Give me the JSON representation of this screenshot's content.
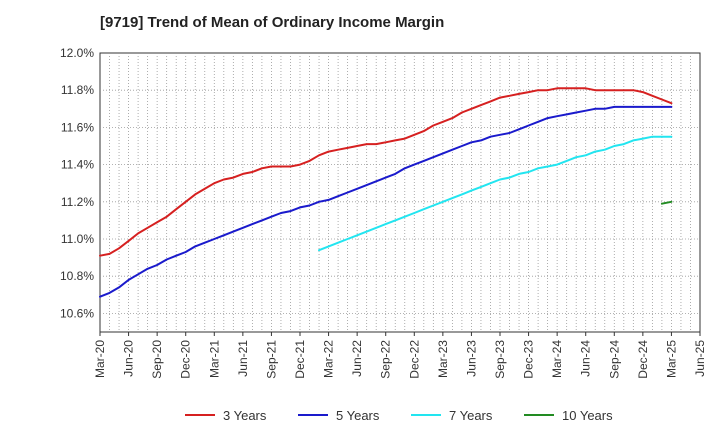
{
  "chart_data": {
    "type": "line",
    "title": "[9719]  Trend of Mean of Ordinary Income Margin",
    "xlabel": "",
    "ylabel": "",
    "ylim": [
      10.5,
      12.0
    ],
    "xlim": [
      "2020-03",
      "2025-06"
    ],
    "grid": true,
    "legend_position": "bottom",
    "y_ticks": [
      "10.6%",
      "10.8%",
      "11.0%",
      "11.2%",
      "11.4%",
      "11.6%",
      "11.8%",
      "12.0%"
    ],
    "x_ticks": [
      "Mar-20",
      "Jun-20",
      "Sep-20",
      "Dec-20",
      "Mar-21",
      "Jun-21",
      "Sep-21",
      "Dec-21",
      "Mar-22",
      "Jun-22",
      "Sep-22",
      "Dec-22",
      "Mar-23",
      "Jun-23",
      "Sep-23",
      "Dec-23",
      "Mar-24",
      "Jun-24",
      "Sep-24",
      "Dec-24",
      "Mar-25",
      "Jun-25"
    ],
    "series": [
      {
        "name": "3 Years",
        "color": "#d62020",
        "points": [
          [
            "2020-03",
            10.91
          ],
          [
            "2020-04",
            10.92
          ],
          [
            "2020-05",
            10.95
          ],
          [
            "2020-06",
            10.99
          ],
          [
            "2020-07",
            11.03
          ],
          [
            "2020-08",
            11.06
          ],
          [
            "2020-09",
            11.09
          ],
          [
            "2020-10",
            11.12
          ],
          [
            "2020-11",
            11.16
          ],
          [
            "2020-12",
            11.2
          ],
          [
            "2021-01",
            11.24
          ],
          [
            "2021-02",
            11.27
          ],
          [
            "2021-03",
            11.3
          ],
          [
            "2021-04",
            11.32
          ],
          [
            "2021-05",
            11.33
          ],
          [
            "2021-06",
            11.35
          ],
          [
            "2021-07",
            11.36
          ],
          [
            "2021-08",
            11.38
          ],
          [
            "2021-09",
            11.39
          ],
          [
            "2021-10",
            11.39
          ],
          [
            "2021-11",
            11.39
          ],
          [
            "2021-12",
            11.4
          ],
          [
            "2022-01",
            11.42
          ],
          [
            "2022-02",
            11.45
          ],
          [
            "2022-03",
            11.47
          ],
          [
            "2022-04",
            11.48
          ],
          [
            "2022-05",
            11.49
          ],
          [
            "2022-06",
            11.5
          ],
          [
            "2022-07",
            11.51
          ],
          [
            "2022-08",
            11.51
          ],
          [
            "2022-09",
            11.52
          ],
          [
            "2022-10",
            11.53
          ],
          [
            "2022-11",
            11.54
          ],
          [
            "2022-12",
            11.56
          ],
          [
            "2023-01",
            11.58
          ],
          [
            "2023-02",
            11.61
          ],
          [
            "2023-03",
            11.63
          ],
          [
            "2023-04",
            11.65
          ],
          [
            "2023-05",
            11.68
          ],
          [
            "2023-06",
            11.7
          ],
          [
            "2023-07",
            11.72
          ],
          [
            "2023-08",
            11.74
          ],
          [
            "2023-09",
            11.76
          ],
          [
            "2023-10",
            11.77
          ],
          [
            "2023-11",
            11.78
          ],
          [
            "2023-12",
            11.79
          ],
          [
            "2024-01",
            11.8
          ],
          [
            "2024-02",
            11.8
          ],
          [
            "2024-03",
            11.81
          ],
          [
            "2024-04",
            11.81
          ],
          [
            "2024-05",
            11.81
          ],
          [
            "2024-06",
            11.81
          ],
          [
            "2024-07",
            11.8
          ],
          [
            "2024-08",
            11.8
          ],
          [
            "2024-09",
            11.8
          ],
          [
            "2024-10",
            11.8
          ],
          [
            "2024-11",
            11.8
          ],
          [
            "2024-12",
            11.79
          ],
          [
            "2025-01",
            11.77
          ],
          [
            "2025-02",
            11.75
          ],
          [
            "2025-03",
            11.73
          ]
        ]
      },
      {
        "name": "5 Years",
        "color": "#1a1acc",
        "points": [
          [
            "2020-03",
            10.69
          ],
          [
            "2020-04",
            10.71
          ],
          [
            "2020-05",
            10.74
          ],
          [
            "2020-06",
            10.78
          ],
          [
            "2020-07",
            10.81
          ],
          [
            "2020-08",
            10.84
          ],
          [
            "2020-09",
            10.86
          ],
          [
            "2020-10",
            10.89
          ],
          [
            "2020-11",
            10.91
          ],
          [
            "2020-12",
            10.93
          ],
          [
            "2021-01",
            10.96
          ],
          [
            "2021-02",
            10.98
          ],
          [
            "2021-03",
            11.0
          ],
          [
            "2021-04",
            11.02
          ],
          [
            "2021-05",
            11.04
          ],
          [
            "2021-06",
            11.06
          ],
          [
            "2021-07",
            11.08
          ],
          [
            "2021-08",
            11.1
          ],
          [
            "2021-09",
            11.12
          ],
          [
            "2021-10",
            11.14
          ],
          [
            "2021-11",
            11.15
          ],
          [
            "2021-12",
            11.17
          ],
          [
            "2022-01",
            11.18
          ],
          [
            "2022-02",
            11.2
          ],
          [
            "2022-03",
            11.21
          ],
          [
            "2022-04",
            11.23
          ],
          [
            "2022-05",
            11.25
          ],
          [
            "2022-06",
            11.27
          ],
          [
            "2022-07",
            11.29
          ],
          [
            "2022-08",
            11.31
          ],
          [
            "2022-09",
            11.33
          ],
          [
            "2022-10",
            11.35
          ],
          [
            "2022-11",
            11.38
          ],
          [
            "2022-12",
            11.4
          ],
          [
            "2023-01",
            11.42
          ],
          [
            "2023-02",
            11.44
          ],
          [
            "2023-03",
            11.46
          ],
          [
            "2023-04",
            11.48
          ],
          [
            "2023-05",
            11.5
          ],
          [
            "2023-06",
            11.52
          ],
          [
            "2023-07",
            11.53
          ],
          [
            "2023-08",
            11.55
          ],
          [
            "2023-09",
            11.56
          ],
          [
            "2023-10",
            11.57
          ],
          [
            "2023-11",
            11.59
          ],
          [
            "2023-12",
            11.61
          ],
          [
            "2024-01",
            11.63
          ],
          [
            "2024-02",
            11.65
          ],
          [
            "2024-03",
            11.66
          ],
          [
            "2024-04",
            11.67
          ],
          [
            "2024-05",
            11.68
          ],
          [
            "2024-06",
            11.69
          ],
          [
            "2024-07",
            11.7
          ],
          [
            "2024-08",
            11.7
          ],
          [
            "2024-09",
            11.71
          ],
          [
            "2024-10",
            11.71
          ],
          [
            "2024-11",
            11.71
          ],
          [
            "2024-12",
            11.71
          ],
          [
            "2025-01",
            11.71
          ],
          [
            "2025-02",
            11.71
          ],
          [
            "2025-03",
            11.71
          ]
        ]
      },
      {
        "name": "7 Years",
        "color": "#22e5f0",
        "points": [
          [
            "2022-02",
            10.94
          ],
          [
            "2022-03",
            10.96
          ],
          [
            "2022-04",
            10.98
          ],
          [
            "2022-05",
            11.0
          ],
          [
            "2022-06",
            11.02
          ],
          [
            "2022-07",
            11.04
          ],
          [
            "2022-08",
            11.06
          ],
          [
            "2022-09",
            11.08
          ],
          [
            "2022-10",
            11.1
          ],
          [
            "2022-11",
            11.12
          ],
          [
            "2022-12",
            11.14
          ],
          [
            "2023-01",
            11.16
          ],
          [
            "2023-02",
            11.18
          ],
          [
            "2023-03",
            11.2
          ],
          [
            "2023-04",
            11.22
          ],
          [
            "2023-05",
            11.24
          ],
          [
            "2023-06",
            11.26
          ],
          [
            "2023-07",
            11.28
          ],
          [
            "2023-08",
            11.3
          ],
          [
            "2023-09",
            11.32
          ],
          [
            "2023-10",
            11.33
          ],
          [
            "2023-11",
            11.35
          ],
          [
            "2023-12",
            11.36
          ],
          [
            "2024-01",
            11.38
          ],
          [
            "2024-02",
            11.39
          ],
          [
            "2024-03",
            11.4
          ],
          [
            "2024-04",
            11.42
          ],
          [
            "2024-05",
            11.44
          ],
          [
            "2024-06",
            11.45
          ],
          [
            "2024-07",
            11.47
          ],
          [
            "2024-08",
            11.48
          ],
          [
            "2024-09",
            11.5
          ],
          [
            "2024-10",
            11.51
          ],
          [
            "2024-11",
            11.53
          ],
          [
            "2024-12",
            11.54
          ],
          [
            "2025-01",
            11.55
          ],
          [
            "2025-02",
            11.55
          ],
          [
            "2025-03",
            11.55
          ]
        ]
      },
      {
        "name": "10 Years",
        "color": "#228b22",
        "points": [
          [
            "2025-02",
            11.19
          ],
          [
            "2025-03",
            11.2
          ]
        ]
      }
    ]
  }
}
